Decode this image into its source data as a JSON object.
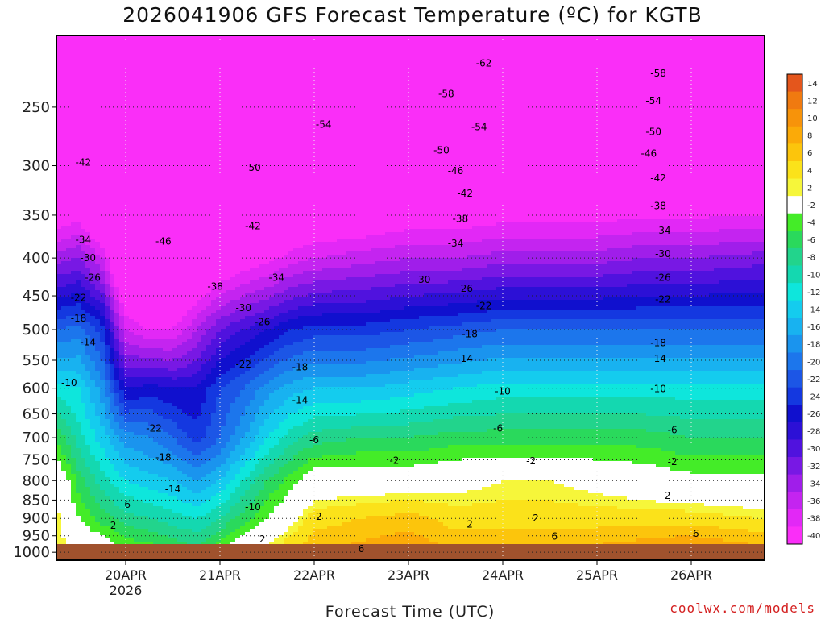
{
  "chart_data": {
    "type": "heatmap",
    "title": "2026041906 GFS Forecast Temperature (ºC) for KGTB",
    "xlabel": "Forecast Time (UTC)",
    "ylabel": "",
    "x_ticks": [
      {
        "label": "20APR",
        "sublabel": "2026",
        "day": 20
      },
      {
        "label": "21APR",
        "sublabel": "",
        "day": 21
      },
      {
        "label": "22APR",
        "sublabel": "",
        "day": 22
      },
      {
        "label": "23APR",
        "sublabel": "",
        "day": 23
      },
      {
        "label": "24APR",
        "sublabel": "",
        "day": 24
      },
      {
        "label": "25APR",
        "sublabel": "",
        "day": 25
      },
      {
        "label": "26APR",
        "sublabel": "",
        "day": 26
      }
    ],
    "xlim_day": [
      19.25,
      26.75
    ],
    "y_ticks": [
      250,
      300,
      350,
      400,
      450,
      500,
      550,
      600,
      650,
      700,
      750,
      800,
      850,
      900,
      950,
      1000
    ],
    "ylim": [
      200,
      1025
    ],
    "y_scale": "log-pressure (inverted)",
    "grid": true,
    "colorbar": {
      "labels": [
        "14",
        "12",
        "10",
        "8",
        "6",
        "4",
        "2",
        "-2",
        "-4",
        "-6",
        "-8",
        "-10",
        "-12",
        "-14",
        "-16",
        "-18",
        "-20",
        "-22",
        "-24",
        "-26",
        "-28",
        "-30",
        "-32",
        "-34",
        "-36",
        "-38",
        "-40"
      ],
      "colors": [
        "#e4561c",
        "#f07a10",
        "#f7930a",
        "#fbaa08",
        "#fcc50c",
        "#fbe21a",
        "#f6f63a",
        "#ffffff",
        "#44ec28",
        "#2ad95c",
        "#22d48c",
        "#14d8b0",
        "#0ee6dc",
        "#14ccee",
        "#18b2f0",
        "#1a94ee",
        "#1c76ec",
        "#1c56e6",
        "#1438e0",
        "#1010ce",
        "#2c10d6",
        "#5012de",
        "#7818e4",
        "#a01eea",
        "#c424f0",
        "#e228f6",
        "#fa2ef8"
      ]
    },
    "profile_columns": [
      {
        "day": 19.25,
        "levels": [
          [
            300,
            -48
          ],
          [
            400,
            -33
          ],
          [
            500,
            -20
          ],
          [
            600,
            -11
          ],
          [
            700,
            -4
          ],
          [
            800,
            2
          ],
          [
            900,
            3
          ],
          [
            1000,
            3
          ]
        ]
      },
      {
        "day": 19.5,
        "levels": [
          [
            300,
            -46
          ],
          [
            400,
            -32
          ],
          [
            500,
            -19
          ],
          [
            600,
            -12
          ],
          [
            700,
            -9
          ],
          [
            800,
            -5
          ],
          [
            900,
            -2
          ],
          [
            1000,
            2
          ]
        ]
      },
      {
        "day": 19.75,
        "levels": [
          [
            300,
            -52
          ],
          [
            400,
            -36
          ],
          [
            500,
            -23
          ],
          [
            600,
            -17
          ],
          [
            700,
            -13
          ],
          [
            800,
            -9
          ],
          [
            900,
            -5
          ],
          [
            1000,
            1
          ]
        ]
      },
      {
        "day": 20.0,
        "levels": [
          [
            300,
            -52
          ],
          [
            400,
            -46
          ],
          [
            500,
            -36
          ],
          [
            600,
            -26
          ],
          [
            700,
            -17
          ],
          [
            800,
            -12
          ],
          [
            900,
            -7
          ],
          [
            1000,
            -2
          ]
        ]
      },
      {
        "day": 20.25,
        "levels": [
          [
            300,
            -52
          ],
          [
            400,
            -47
          ],
          [
            500,
            -38
          ],
          [
            600,
            -25
          ],
          [
            700,
            -18
          ],
          [
            800,
            -13
          ],
          [
            900,
            -8
          ],
          [
            1000,
            -2
          ]
        ]
      },
      {
        "day": 20.5,
        "levels": [
          [
            300,
            -52
          ],
          [
            400,
            -46
          ],
          [
            500,
            -38
          ],
          [
            600,
            -26
          ],
          [
            700,
            -20
          ],
          [
            800,
            -14
          ],
          [
            900,
            -9
          ],
          [
            1000,
            -4
          ]
        ]
      },
      {
        "day": 20.75,
        "levels": [
          [
            300,
            -52
          ],
          [
            400,
            -44
          ],
          [
            500,
            -34
          ],
          [
            600,
            -26
          ],
          [
            700,
            -23
          ],
          [
            800,
            -16
          ],
          [
            900,
            -10
          ],
          [
            1000,
            -5
          ]
        ]
      },
      {
        "day": 21.0,
        "levels": [
          [
            300,
            -50
          ],
          [
            400,
            -42
          ],
          [
            500,
            -30
          ],
          [
            600,
            -22
          ],
          [
            700,
            -20
          ],
          [
            800,
            -14
          ],
          [
            900,
            -8
          ],
          [
            1000,
            -2
          ]
        ]
      },
      {
        "day": 21.25,
        "levels": [
          [
            300,
            -50
          ],
          [
            400,
            -40
          ],
          [
            500,
            -28
          ],
          [
            600,
            -20
          ],
          [
            700,
            -16
          ],
          [
            800,
            -10
          ],
          [
            900,
            -5
          ],
          [
            1000,
            2
          ]
        ]
      },
      {
        "day": 21.5,
        "levels": [
          [
            300,
            -50
          ],
          [
            400,
            -39
          ],
          [
            500,
            -26
          ],
          [
            600,
            -17
          ],
          [
            700,
            -12
          ],
          [
            800,
            -6
          ],
          [
            900,
            -2
          ],
          [
            1000,
            3
          ]
        ]
      },
      {
        "day": 21.75,
        "levels": [
          [
            300,
            -48
          ],
          [
            400,
            -37
          ],
          [
            500,
            -24
          ],
          [
            600,
            -15
          ],
          [
            700,
            -9
          ],
          [
            800,
            -3
          ],
          [
            900,
            1
          ],
          [
            1000,
            5
          ]
        ]
      },
      {
        "day": 22.0,
        "levels": [
          [
            300,
            -47
          ],
          [
            400,
            -36
          ],
          [
            500,
            -23
          ],
          [
            600,
            -14
          ],
          [
            700,
            -7
          ],
          [
            800,
            0
          ],
          [
            900,
            4
          ],
          [
            1000,
            7
          ]
        ]
      },
      {
        "day": 22.5,
        "levels": [
          [
            300,
            -47
          ],
          [
            400,
            -35
          ],
          [
            500,
            -23
          ],
          [
            600,
            -14
          ],
          [
            700,
            -6
          ],
          [
            800,
            0
          ],
          [
            900,
            5
          ],
          [
            1000,
            8
          ]
        ]
      },
      {
        "day": 23.0,
        "levels": [
          [
            300,
            -46
          ],
          [
            400,
            -34
          ],
          [
            500,
            -22
          ],
          [
            600,
            -13
          ],
          [
            700,
            -6
          ],
          [
            800,
            0
          ],
          [
            900,
            6
          ],
          [
            1000,
            9
          ]
        ]
      },
      {
        "day": 23.5,
        "levels": [
          [
            300,
            -46
          ],
          [
            400,
            -34
          ],
          [
            500,
            -21
          ],
          [
            600,
            -12
          ],
          [
            700,
            -5
          ],
          [
            800,
            1
          ],
          [
            900,
            4
          ],
          [
            1000,
            7
          ]
        ]
      },
      {
        "day": 24.0,
        "levels": [
          [
            300,
            -45
          ],
          [
            400,
            -33
          ],
          [
            500,
            -20
          ],
          [
            600,
            -11
          ],
          [
            700,
            -5
          ],
          [
            800,
            2
          ],
          [
            900,
            4
          ],
          [
            1000,
            8
          ]
        ]
      },
      {
        "day": 24.5,
        "levels": [
          [
            300,
            -45
          ],
          [
            400,
            -33
          ],
          [
            500,
            -20
          ],
          [
            600,
            -11
          ],
          [
            700,
            -5
          ],
          [
            800,
            2
          ],
          [
            900,
            4
          ],
          [
            1000,
            8
          ]
        ]
      },
      {
        "day": 25.0,
        "levels": [
          [
            300,
            -45
          ],
          [
            400,
            -33
          ],
          [
            500,
            -20
          ],
          [
            600,
            -11
          ],
          [
            700,
            -5
          ],
          [
            800,
            1
          ],
          [
            900,
            4
          ],
          [
            1000,
            8
          ]
        ]
      },
      {
        "day": 25.5,
        "levels": [
          [
            300,
            -45
          ],
          [
            400,
            -32
          ],
          [
            500,
            -20
          ],
          [
            600,
            -11
          ],
          [
            700,
            -5
          ],
          [
            800,
            0
          ],
          [
            900,
            4
          ],
          [
            1000,
            9
          ]
        ]
      },
      {
        "day": 26.0,
        "levels": [
          [
            300,
            -45
          ],
          [
            400,
            -32
          ],
          [
            500,
            -20
          ],
          [
            600,
            -11
          ],
          [
            700,
            -6
          ],
          [
            800,
            -1
          ],
          [
            900,
            4
          ],
          [
            1000,
            10
          ]
        ]
      },
      {
        "day": 26.75,
        "levels": [
          [
            300,
            -45
          ],
          [
            400,
            -31
          ],
          [
            500,
            -20
          ],
          [
            600,
            -11
          ],
          [
            700,
            -6
          ],
          [
            800,
            -1
          ],
          [
            900,
            3
          ],
          [
            1000,
            8
          ]
        ]
      }
    ],
    "contour_labels": [
      {
        "text": "-62",
        "day": 23.8,
        "p": 218
      },
      {
        "text": "-58",
        "day": 23.4,
        "p": 240
      },
      {
        "text": "-58",
        "day": 25.65,
        "p": 225
      },
      {
        "text": "-54",
        "day": 22.1,
        "p": 264
      },
      {
        "text": "-54",
        "day": 23.75,
        "p": 266
      },
      {
        "text": "-54",
        "day": 25.6,
        "p": 245
      },
      {
        "text": "-50",
        "day": 21.35,
        "p": 302
      },
      {
        "text": "-50",
        "day": 23.35,
        "p": 286
      },
      {
        "text": "-50",
        "day": 25.6,
        "p": 270
      },
      {
        "text": "-46",
        "day": 25.55,
        "p": 289
      },
      {
        "text": "-46",
        "day": 23.5,
        "p": 305
      },
      {
        "text": "-46",
        "day": 20.4,
        "p": 380
      },
      {
        "text": "-42",
        "day": 19.55,
        "p": 297
      },
      {
        "text": "-42",
        "day": 21.35,
        "p": 362
      },
      {
        "text": "-42",
        "day": 23.6,
        "p": 327
      },
      {
        "text": "-42",
        "day": 25.65,
        "p": 312
      },
      {
        "text": "-38",
        "day": 20.95,
        "p": 437
      },
      {
        "text": "-38",
        "day": 23.55,
        "p": 354
      },
      {
        "text": "-38",
        "day": 25.65,
        "p": 340
      },
      {
        "text": "-34",
        "day": 19.55,
        "p": 378
      },
      {
        "text": "-34",
        "day": 21.6,
        "p": 425
      },
      {
        "text": "-34",
        "day": 23.5,
        "p": 382
      },
      {
        "text": "-34",
        "day": 25.7,
        "p": 367
      },
      {
        "text": "-30",
        "day": 19.6,
        "p": 400
      },
      {
        "text": "-30",
        "day": 21.25,
        "p": 467
      },
      {
        "text": "-30",
        "day": 23.15,
        "p": 428
      },
      {
        "text": "-30",
        "day": 25.7,
        "p": 395
      },
      {
        "text": "-26",
        "day": 19.65,
        "p": 425
      },
      {
        "text": "-26",
        "day": 21.45,
        "p": 488
      },
      {
        "text": "-26",
        "day": 23.6,
        "p": 440
      },
      {
        "text": "-26",
        "day": 25.7,
        "p": 425
      },
      {
        "text": "-22",
        "day": 19.5,
        "p": 453
      },
      {
        "text": "-22",
        "day": 23.8,
        "p": 464
      },
      {
        "text": "-22",
        "day": 25.7,
        "p": 455
      },
      {
        "text": "-22",
        "day": 21.25,
        "p": 557
      },
      {
        "text": "-22",
        "day": 20.3,
        "p": 680
      },
      {
        "text": "-18",
        "day": 19.5,
        "p": 483
      },
      {
        "text": "-18",
        "day": 21.85,
        "p": 562
      },
      {
        "text": "-18",
        "day": 23.65,
        "p": 507
      },
      {
        "text": "-18",
        "day": 25.65,
        "p": 521
      },
      {
        "text": "-18",
        "day": 20.4,
        "p": 744
      },
      {
        "text": "-14",
        "day": 19.6,
        "p": 520
      },
      {
        "text": "-14",
        "day": 21.85,
        "p": 623
      },
      {
        "text": "-14",
        "day": 23.6,
        "p": 547
      },
      {
        "text": "-14",
        "day": 25.65,
        "p": 547
      },
      {
        "text": "-14",
        "day": 20.5,
        "p": 822
      },
      {
        "text": "-10",
        "day": 19.4,
        "p": 590
      },
      {
        "text": "-10",
        "day": 24.0,
        "p": 606
      },
      {
        "text": "-10",
        "day": 25.65,
        "p": 601
      },
      {
        "text": "-10",
        "day": 21.35,
        "p": 868
      },
      {
        "text": "-6",
        "day": 20.0,
        "p": 862
      },
      {
        "text": "-6",
        "day": 22.0,
        "p": 705
      },
      {
        "text": "-6",
        "day": 23.95,
        "p": 680
      },
      {
        "text": "-6",
        "day": 25.8,
        "p": 683
      },
      {
        "text": "-2",
        "day": 19.85,
        "p": 920
      },
      {
        "text": "-2",
        "day": 22.85,
        "p": 752
      },
      {
        "text": "-2",
        "day": 24.3,
        "p": 753
      },
      {
        "text": "-2",
        "day": 25.8,
        "p": 755
      },
      {
        "text": "2",
        "day": 21.45,
        "p": 960
      },
      {
        "text": "2",
        "day": 22.05,
        "p": 895
      },
      {
        "text": "2",
        "day": 23.65,
        "p": 917
      },
      {
        "text": "2",
        "day": 24.35,
        "p": 900
      },
      {
        "text": "2",
        "day": 25.75,
        "p": 838
      },
      {
        "text": "6",
        "day": 22.5,
        "p": 990
      },
      {
        "text": "6",
        "day": 24.55,
        "p": 952
      },
      {
        "text": "6",
        "day": 26.05,
        "p": 943
      }
    ]
  },
  "watermark": "coolwx.com/models"
}
